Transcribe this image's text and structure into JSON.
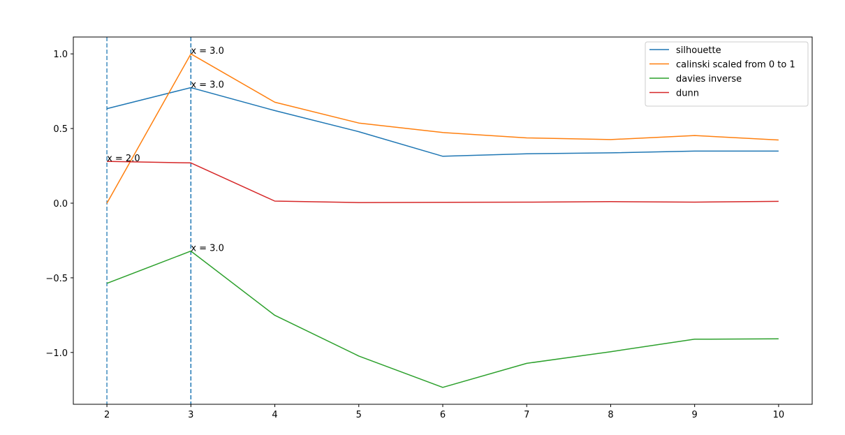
{
  "chart_data": {
    "type": "line",
    "x": [
      2,
      3,
      4,
      5,
      6,
      7,
      8,
      9,
      10
    ],
    "xlim": [
      1.6,
      10.4
    ],
    "ylim": [
      -1.347,
      1.113
    ],
    "x_ticks": [
      2,
      3,
      4,
      5,
      6,
      7,
      8,
      9,
      10
    ],
    "y_ticks": [
      1.0,
      0.5,
      0.0,
      -0.5,
      -1.0
    ],
    "y_tick_labels": [
      "1.0",
      "0.5",
      "0.0",
      "−0.5",
      "−1.0"
    ],
    "grid": false,
    "legend_position": "top-right",
    "series": [
      {
        "name": "silhouette",
        "color": "#1f77b4",
        "values": [
          0.633,
          0.774,
          0.62,
          0.479,
          0.314,
          0.331,
          0.337,
          0.349,
          0.349
        ]
      },
      {
        "name": "calinski scaled from 0 to 1",
        "color": "#ff7f0e",
        "values": [
          0.0,
          1.0,
          0.676,
          0.537,
          0.473,
          0.437,
          0.426,
          0.453,
          0.423
        ]
      },
      {
        "name": "davies inverse",
        "color": "#2ca02c",
        "values": [
          -0.537,
          -0.321,
          -0.751,
          -1.024,
          -1.234,
          -1.073,
          -0.995,
          -0.911,
          -0.909
        ]
      },
      {
        "name": "dunn",
        "color": "#d62728",
        "values": [
          0.28,
          0.27,
          0.014,
          0.004,
          0.006,
          0.007,
          0.01,
          0.007,
          0.012
        ]
      }
    ],
    "vlines": [
      {
        "x": 2.0,
        "color": "#1f77b4"
      },
      {
        "x": 3.0,
        "color": "#1f77b4"
      }
    ],
    "annotations": [
      {
        "text": "x = 3.0",
        "x": 3.0,
        "y": 1.0
      },
      {
        "text": "x = 3.0",
        "x": 3.0,
        "y": 0.774
      },
      {
        "text": "x = 2.0",
        "x": 2.0,
        "y": 0.28
      },
      {
        "text": "x = 3.0",
        "x": 3.0,
        "y": -0.321
      }
    ]
  }
}
